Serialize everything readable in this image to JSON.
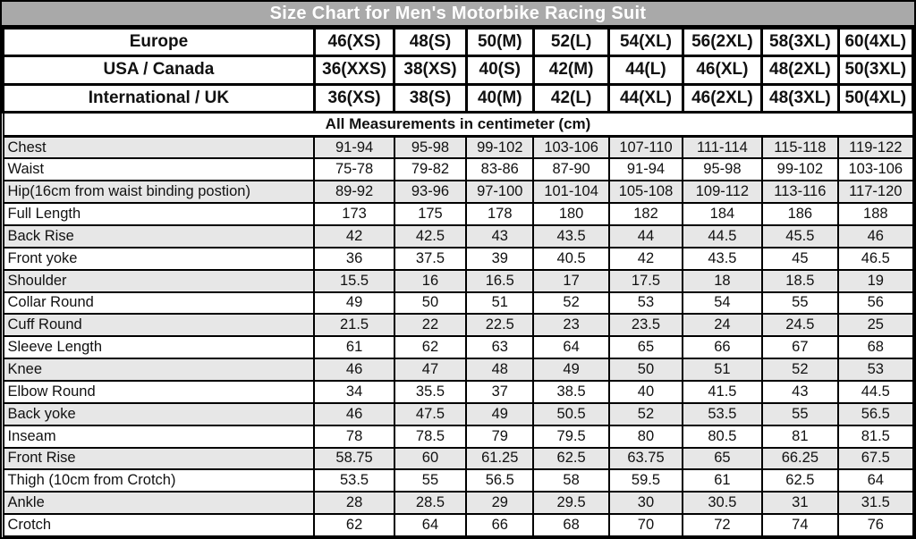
{
  "colors": {
    "title_bg": "#a9a9a9",
    "title_text": "#ffffff",
    "row_shaded_bg": "#e7e7e7",
    "row_plain_bg": "#ffffff",
    "border": "#000000",
    "text": "#111111"
  },
  "chart_data": {
    "type": "table",
    "title": "Size Chart for Men's Motorbike Racing Suit",
    "subtitle": "All Measurements in centimeter (cm)",
    "num_size_columns": 8,
    "size_system_rows": [
      {
        "label": "Europe",
        "values": [
          "46(XS)",
          "48(S)",
          "50(M)",
          "52(L)",
          "54(XL)",
          "56(2XL)",
          "58(3XL)",
          "60(4XL)"
        ]
      },
      {
        "label": "USA / Canada",
        "values": [
          "36(XXS)",
          "38(XS)",
          "40(S)",
          "42(M)",
          "44(L)",
          "46(XL)",
          "48(2XL)",
          "50(3XL)"
        ]
      },
      {
        "label": "International / UK",
        "values": [
          "36(XS)",
          "38(S)",
          "40(M)",
          "42(L)",
          "44(XL)",
          "46(2XL)",
          "48(3XL)",
          "50(4XL)"
        ]
      }
    ],
    "measurement_rows": [
      {
        "label": "Chest",
        "values": [
          "91-94",
          "95-98",
          "99-102",
          "103-106",
          "107-110",
          "111-114",
          "115-118",
          "119-122"
        ]
      },
      {
        "label": "Waist",
        "values": [
          "75-78",
          "79-82",
          "83-86",
          "87-90",
          "91-94",
          "95-98",
          "99-102",
          "103-106"
        ]
      },
      {
        "label": "Hip(16cm from waist binding postion)",
        "values": [
          "89-92",
          "93-96",
          "97-100",
          "101-104",
          "105-108",
          "109-112",
          "113-116",
          "117-120"
        ]
      },
      {
        "label": "Full Length",
        "values": [
          "173",
          "175",
          "178",
          "180",
          "182",
          "184",
          "186",
          "188"
        ]
      },
      {
        "label": "Back Rise",
        "values": [
          "42",
          "42.5",
          "43",
          "43.5",
          "44",
          "44.5",
          "45.5",
          "46"
        ]
      },
      {
        "label": "Front yoke",
        "values": [
          "36",
          "37.5",
          "39",
          "40.5",
          "42",
          "43.5",
          "45",
          "46.5"
        ]
      },
      {
        "label": "Shoulder",
        "values": [
          "15.5",
          "16",
          "16.5",
          "17",
          "17.5",
          "18",
          "18.5",
          "19"
        ]
      },
      {
        "label": "Collar Round",
        "values": [
          "49",
          "50",
          "51",
          "52",
          "53",
          "54",
          "55",
          "56"
        ]
      },
      {
        "label": "Cuff Round",
        "values": [
          "21.5",
          "22",
          "22.5",
          "23",
          "23.5",
          "24",
          "24.5",
          "25"
        ]
      },
      {
        "label": "Sleeve Length",
        "values": [
          "61",
          "62",
          "63",
          "64",
          "65",
          "66",
          "67",
          "68"
        ]
      },
      {
        "label": "Knee",
        "values": [
          "46",
          "47",
          "48",
          "49",
          "50",
          "51",
          "52",
          "53"
        ]
      },
      {
        "label": "Elbow Round",
        "values": [
          "34",
          "35.5",
          "37",
          "38.5",
          "40",
          "41.5",
          "43",
          "44.5"
        ]
      },
      {
        "label": "Back yoke",
        "values": [
          "46",
          "47.5",
          "49",
          "50.5",
          "52",
          "53.5",
          "55",
          "56.5"
        ]
      },
      {
        "label": "Inseam",
        "values": [
          "78",
          "78.5",
          "79",
          "79.5",
          "80",
          "80.5",
          "81",
          "81.5"
        ]
      },
      {
        "label": "Front Rise",
        "values": [
          "58.75",
          "60",
          "61.25",
          "62.5",
          "63.75",
          "65",
          "66.25",
          "67.5"
        ]
      },
      {
        "label": "Thigh (10cm from Crotch)",
        "values": [
          "53.5",
          "55",
          "56.5",
          "58",
          "59.5",
          "61",
          "62.5",
          "64"
        ]
      },
      {
        "label": "Ankle",
        "values": [
          "28",
          "28.5",
          "29",
          "29.5",
          "30",
          "30.5",
          "31",
          "31.5"
        ]
      },
      {
        "label": "Crotch",
        "values": [
          "62",
          "64",
          "66",
          "68",
          "70",
          "72",
          "74",
          "76"
        ]
      }
    ]
  }
}
